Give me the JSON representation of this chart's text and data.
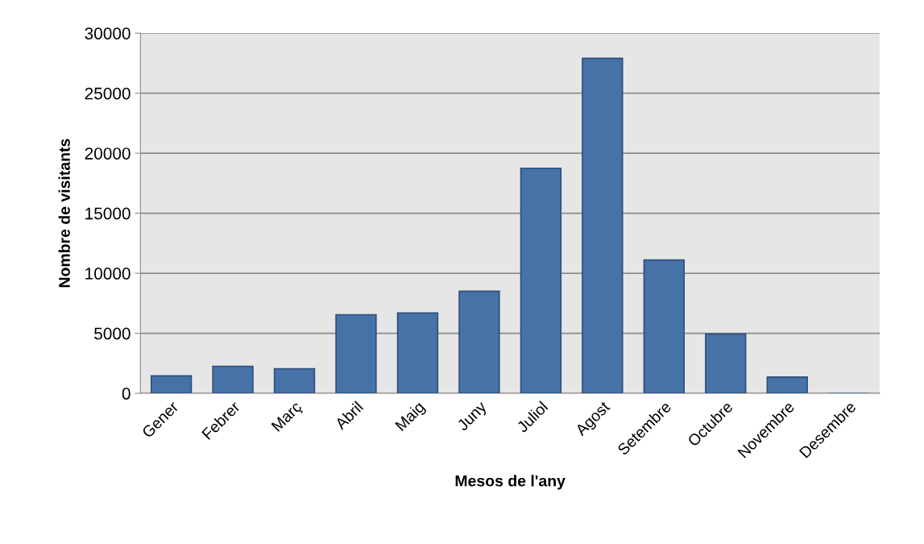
{
  "chart_data": {
    "type": "bar",
    "xlabel": "Mesos de l'any",
    "ylabel": "Nombre de visitants",
    "categories": [
      "Gener",
      "Febrer",
      "Març",
      "Abril",
      "Maig",
      "Juny",
      "Juliol",
      "Agost",
      "Setembre",
      "Octubre",
      "Novembre",
      "Desembre"
    ],
    "values": [
      1450,
      2250,
      2050,
      6550,
      6700,
      8500,
      18750,
      27900,
      11100,
      4950,
      1350,
      0
    ],
    "color": "#4672a8",
    "ylim": [
      0,
      30000
    ],
    "yticks": [
      0,
      5000,
      10000,
      15000,
      20000,
      25000,
      30000
    ],
    "grid": "y",
    "legend": false
  }
}
